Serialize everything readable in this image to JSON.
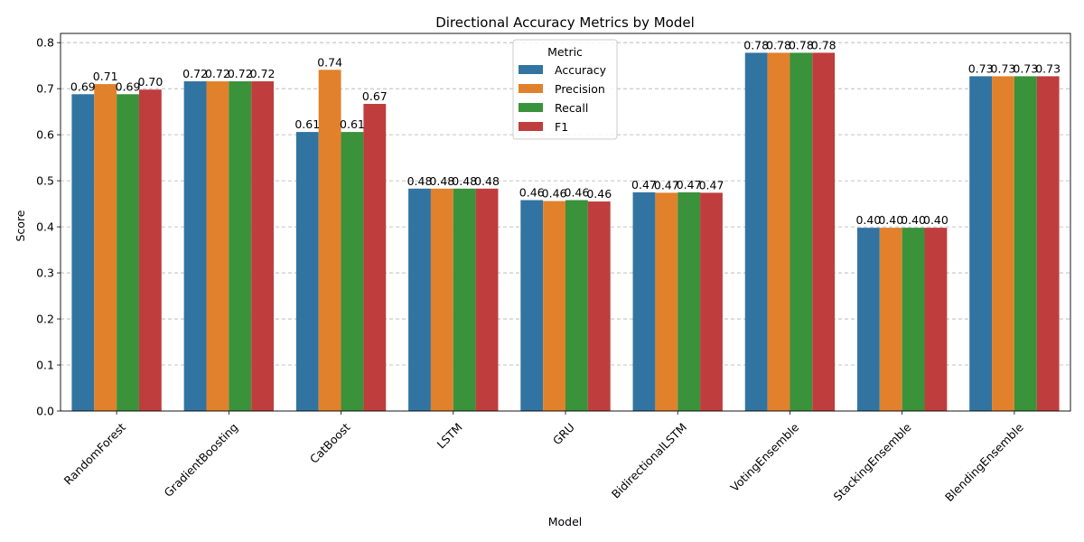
{
  "chart_data": {
    "type": "bar",
    "title": "Directional Accuracy Metrics by Model",
    "xlabel": "Model",
    "ylabel": "Score",
    "ylim": [
      0,
      0.82
    ],
    "yticks": [
      0.0,
      0.1,
      0.2,
      0.3,
      0.4,
      0.5,
      0.6,
      0.7,
      0.8
    ],
    "grid": "y-dashed",
    "categories": [
      "RandomForest",
      "GradientBoosting",
      "CatBoost",
      "LSTM",
      "GRU",
      "BidirectionalLSTM",
      "VotingEnsemble",
      "StackingEnsemble",
      "BlendingEnsemble"
    ],
    "legend": {
      "title": "Metric",
      "placement": "top-center"
    },
    "series": [
      {
        "name": "Accuracy",
        "color": "#3274a1",
        "values": [
          0.688,
          0.716,
          0.606,
          0.483,
          0.458,
          0.475,
          0.778,
          0.398,
          0.727
        ]
      },
      {
        "name": "Precision",
        "color": "#e1812c",
        "values": [
          0.71,
          0.716,
          0.741,
          0.483,
          0.456,
          0.474,
          0.778,
          0.398,
          0.727
        ]
      },
      {
        "name": "Recall",
        "color": "#3a923a",
        "values": [
          0.688,
          0.716,
          0.606,
          0.483,
          0.458,
          0.475,
          0.778,
          0.398,
          0.727
        ]
      },
      {
        "name": "F1",
        "color": "#c03d3e",
        "values": [
          0.698,
          0.716,
          0.667,
          0.483,
          0.455,
          0.474,
          0.778,
          0.398,
          0.727
        ]
      }
    ]
  }
}
